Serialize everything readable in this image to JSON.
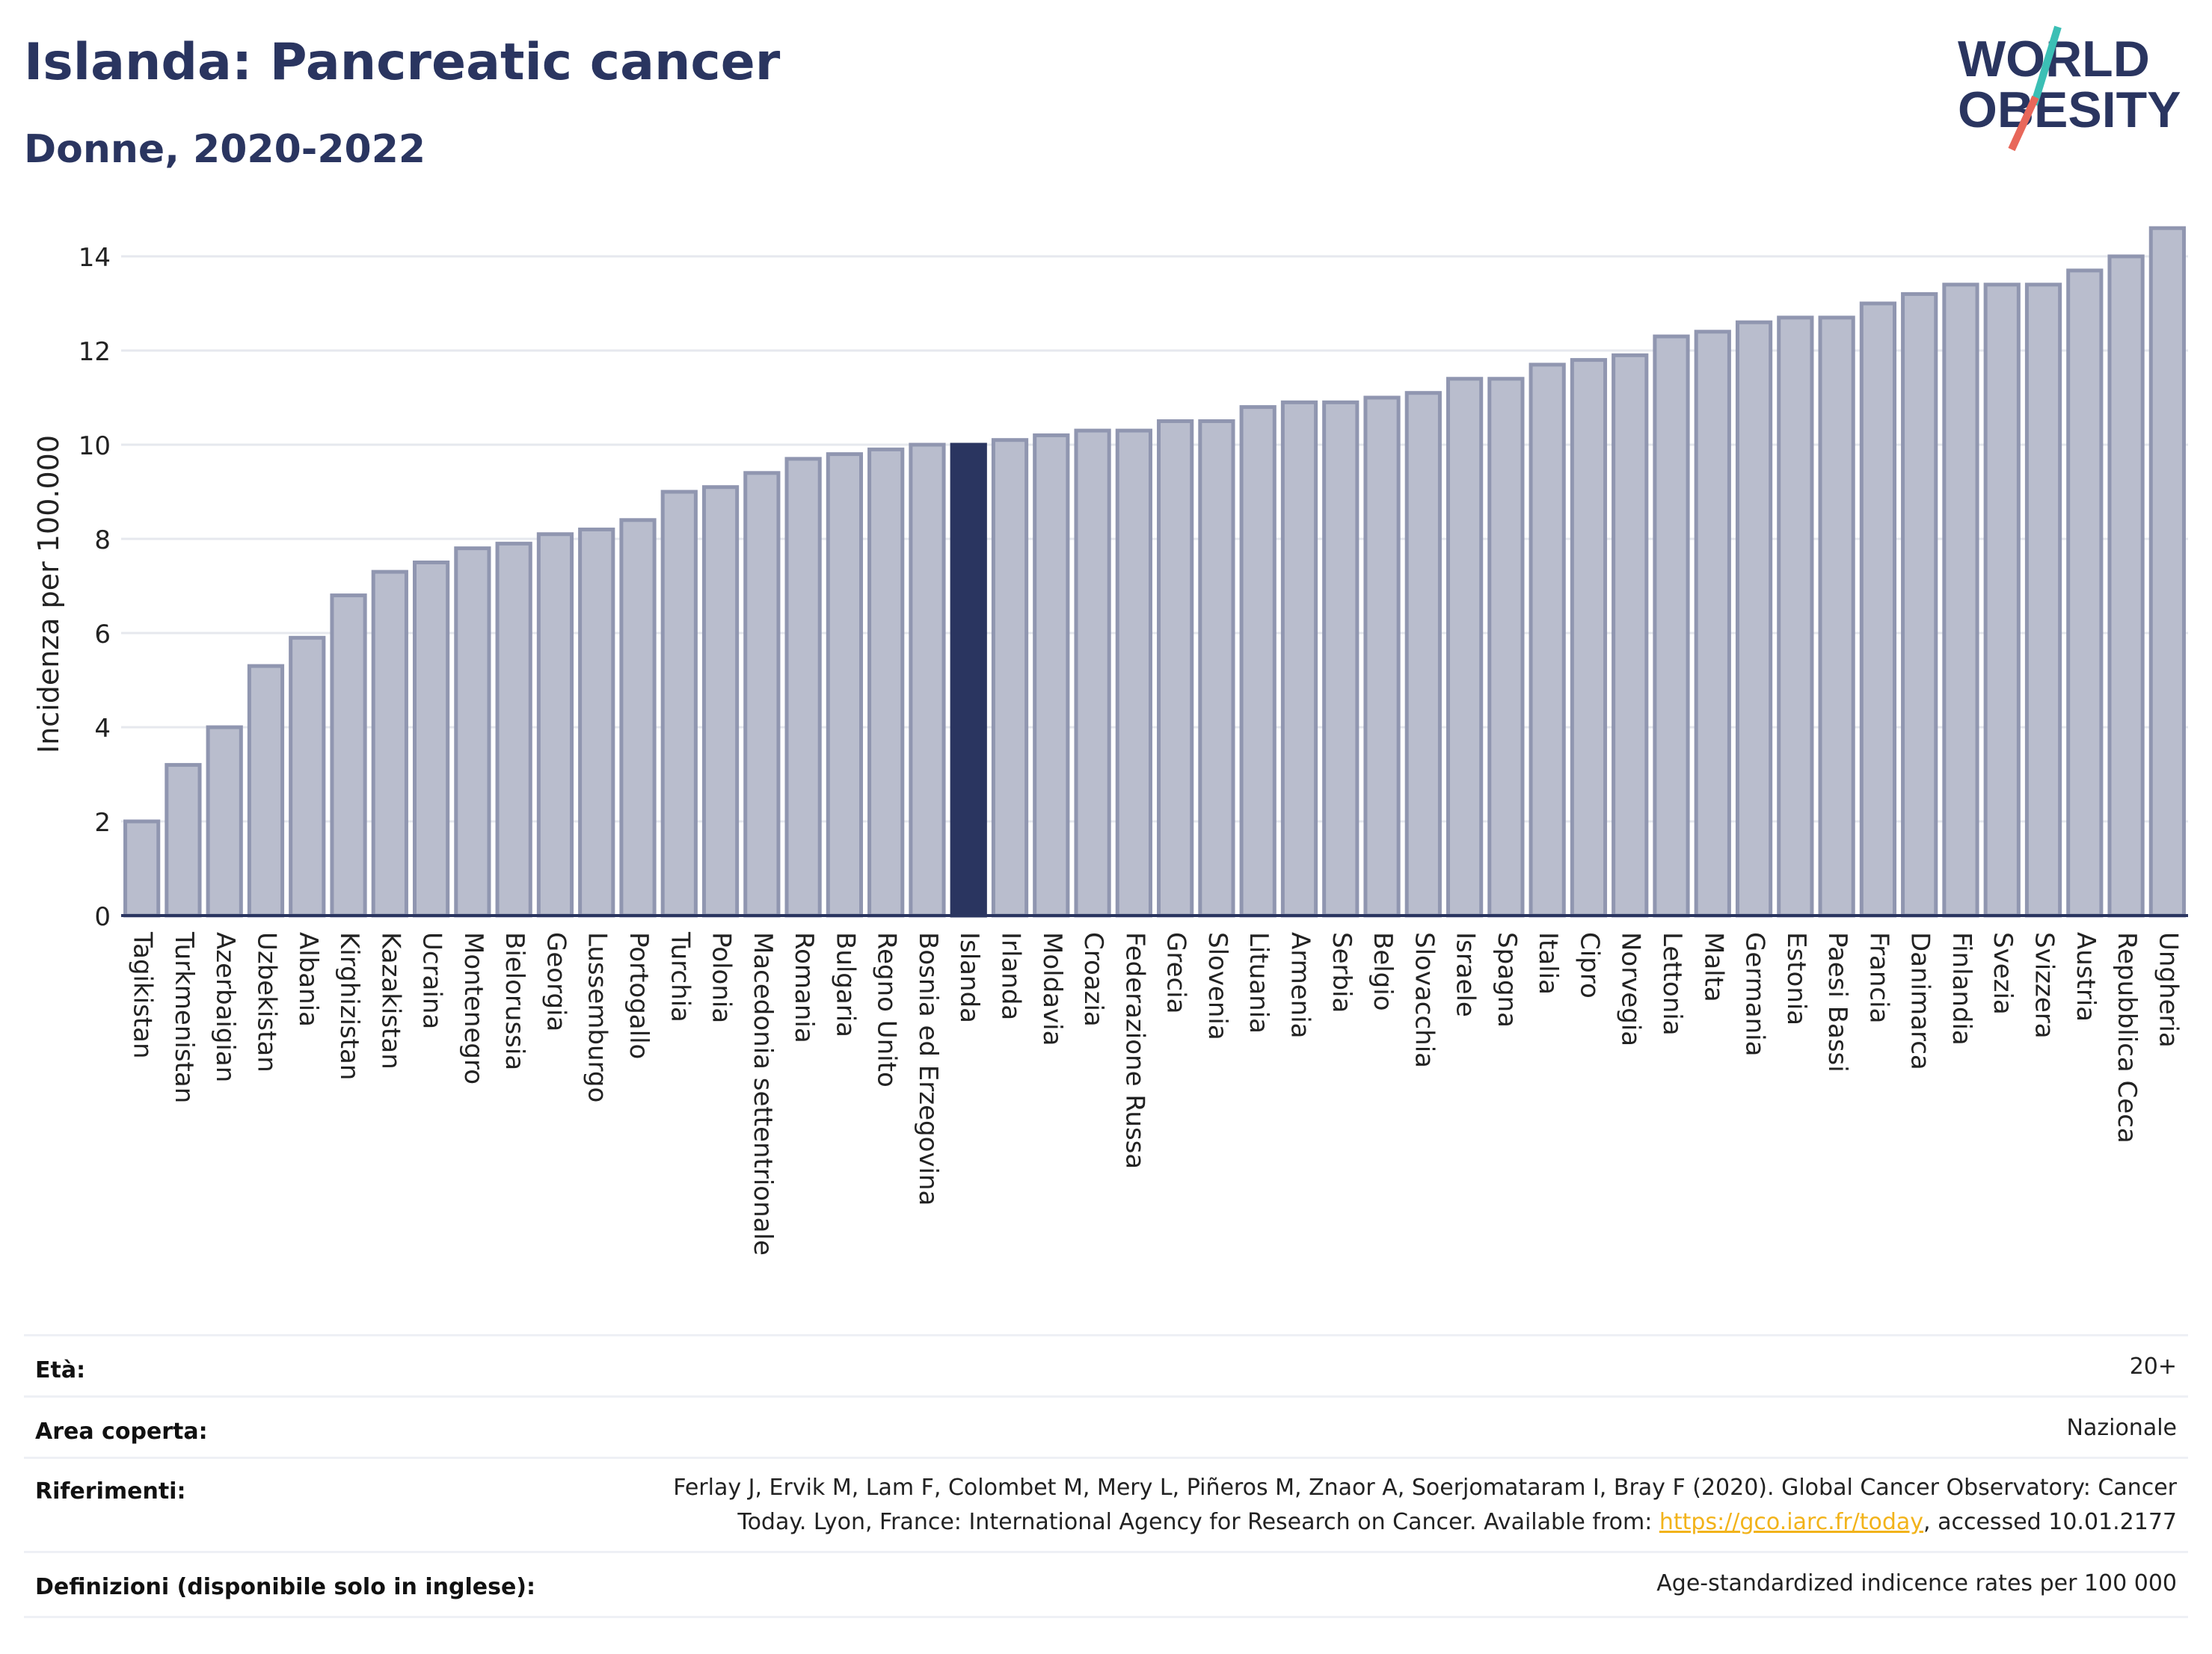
{
  "header": {
    "title": "Islanda: Pancreatic cancer",
    "subtitle": "Donne, 2020-2022"
  },
  "logo": {
    "line1": "WORLD",
    "line2": "OBESITY",
    "colors": {
      "text": "#2a3560",
      "slash_teal": "#3bbfb5",
      "slash_red": "#e8675a"
    }
  },
  "chart_data": {
    "type": "bar",
    "ylabel": "Incidenza per 100.000",
    "xlabel": "",
    "ylim": [
      0,
      15
    ],
    "yticks": [
      0,
      2,
      4,
      6,
      8,
      10,
      12,
      14
    ],
    "grid": true,
    "highlight": "Islanda",
    "colors": {
      "bar": "#b9bdcd",
      "bar_edge": "#9096b0",
      "highlight": "#2a3560"
    },
    "categories": [
      "Tagikistan",
      "Turkmenistan",
      "Azerbaigian",
      "Uzbekistan",
      "Albania",
      "Kirghizistan",
      "Kazakistan",
      "Ucraina",
      "Montenegro",
      "Bielorussia",
      "Georgia",
      "Lussemburgo",
      "Portogallo",
      "Turchia",
      "Polonia",
      "Macedonia settentrionale",
      "Romania",
      "Bulgaria",
      "Regno Unito",
      "Bosnia ed Erzegovina",
      "Islanda",
      "Irlanda",
      "Moldavia",
      "Croazia",
      "Federazione Russa",
      "Grecia",
      "Slovenia",
      "Lituania",
      "Armenia",
      "Serbia",
      "Belgio",
      "Slovacchia",
      "Israele",
      "Spagna",
      "Italia",
      "Cipro",
      "Norvegia",
      "Lettonia",
      "Malta",
      "Germania",
      "Estonia",
      "Paesi Bassi",
      "Francia",
      "Danimarca",
      "Finlandia",
      "Svezia",
      "Svizzera",
      "Austria",
      "Repubblica Ceca",
      "Ungheria"
    ],
    "values": [
      2.0,
      3.2,
      4.0,
      5.3,
      5.9,
      6.8,
      7.3,
      7.5,
      7.8,
      7.9,
      8.1,
      8.2,
      8.4,
      9.0,
      9.1,
      9.4,
      9.7,
      9.8,
      9.9,
      10.0,
      10.0,
      10.1,
      10.2,
      10.3,
      10.3,
      10.5,
      10.5,
      10.8,
      10.9,
      10.9,
      11.0,
      11.1,
      11.4,
      11.4,
      11.7,
      11.8,
      11.9,
      12.3,
      12.4,
      12.6,
      12.7,
      12.7,
      13.0,
      13.2,
      13.4,
      13.4,
      13.4,
      13.7,
      14.0,
      14.6
    ]
  },
  "meta": {
    "rows": [
      {
        "label": "Età:",
        "value": "20+"
      },
      {
        "label": "Area coperta:",
        "value": "Nazionale"
      },
      {
        "label": "Riferimenti:",
        "value_line1": "Ferlay J, Ervik M, Lam F, Colombet M, Mery L, Piñeros M, Znaor A, Soerjomataram I, Bray F (2020). Global Cancer Observatory: Cancer",
        "value_line2_prefix": "Today. Lyon, France: International Agency for Research on Cancer. Available from: ",
        "link": "https://gco.iarc.fr/today",
        "value_line2_suffix": ", accessed 10.01.2177"
      },
      {
        "label": "Definizioni (disponibile solo in inglese):",
        "value": "Age-standardized indicence rates per 100 000"
      }
    ]
  }
}
